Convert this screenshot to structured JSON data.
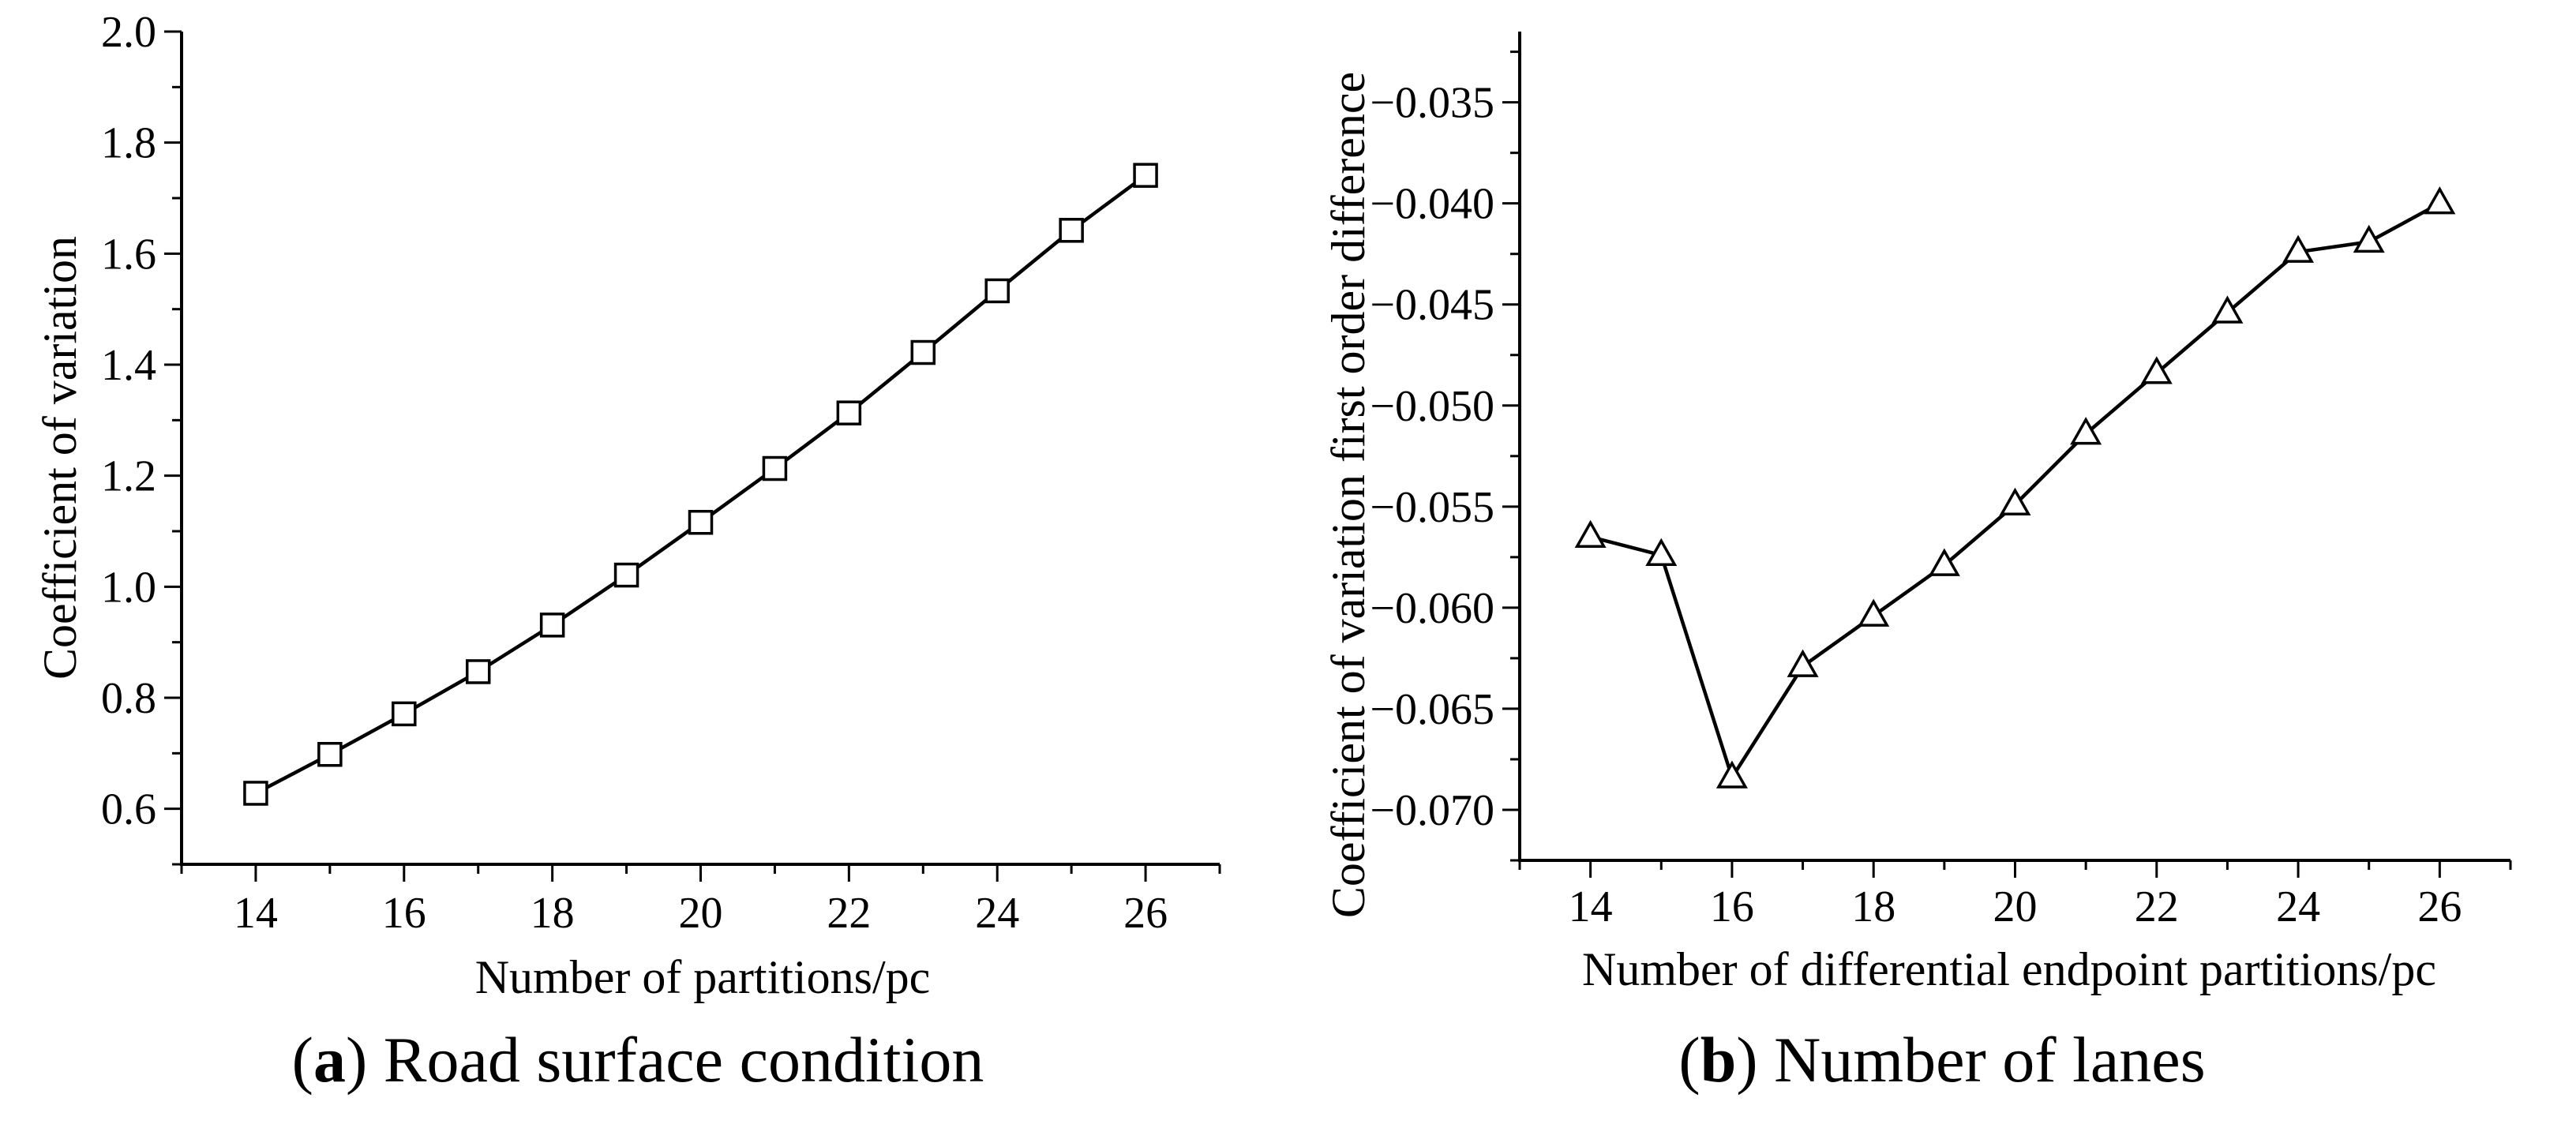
{
  "chart_data": [
    {
      "type": "line",
      "marker": "square",
      "caption_letter": "a",
      "caption_text": "Road surface condition",
      "title": "",
      "xlabel": "Number of partitions/pc",
      "ylabel": "Coefficient of variation",
      "xlim": [
        13,
        27
      ],
      "ylim": [
        0.5,
        2.0
      ],
      "xticks": [
        14,
        16,
        18,
        20,
        22,
        24,
        26
      ],
      "xtick_labels": [
        "14",
        "16",
        "18",
        "20",
        "22",
        "24",
        "26"
      ],
      "yticks": [
        0.6,
        0.8,
        1.0,
        1.2,
        1.4,
        1.6,
        1.8,
        2.0
      ],
      "ytick_labels": [
        "0.6",
        "0.8",
        "1.0",
        "1.2",
        "1.4",
        "1.6",
        "1.8",
        "2.0"
      ],
      "grid": false,
      "series": [
        {
          "name": "Coefficient of variation",
          "x": [
            14,
            15,
            16,
            17,
            18,
            19,
            20,
            21,
            22,
            23,
            24,
            25,
            26
          ],
          "values": [
            0.628,
            0.698,
            0.771,
            0.847,
            0.931,
            1.021,
            1.116,
            1.213,
            1.313,
            1.422,
            1.533,
            1.642,
            1.741
          ]
        }
      ]
    },
    {
      "type": "line",
      "marker": "triangle",
      "caption_letter": "b",
      "caption_text": "Number of lanes",
      "title": "",
      "xlabel": "Number of differential endpoint partitions/pc",
      "ylabel": "Coefficient of variation first order difference",
      "xlim": [
        13,
        27
      ],
      "ylim": [
        -0.0725,
        -0.0315
      ],
      "xticks": [
        14,
        16,
        18,
        20,
        22,
        24,
        26
      ],
      "xtick_labels": [
        "14",
        "16",
        "18",
        "20",
        "22",
        "24",
        "26"
      ],
      "yticks": [
        -0.07,
        -0.065,
        -0.06,
        -0.055,
        -0.05,
        -0.045,
        -0.04,
        -0.035
      ],
      "ytick_labels": [
        "−0.070",
        "−0.065",
        "−0.060",
        "−0.055",
        "−0.050",
        "−0.045",
        "−0.040",
        "−0.035"
      ],
      "grid": false,
      "series": [
        {
          "name": "Coefficient of variation first order difference",
          "x": [
            14,
            15,
            16,
            17,
            18,
            19,
            20,
            21,
            22,
            23,
            24,
            25,
            26
          ],
          "values": [
            -0.0565,
            -0.0574,
            -0.0684,
            -0.0629,
            -0.0604,
            -0.0579,
            -0.0549,
            -0.0514,
            -0.0484,
            -0.0454,
            -0.0424,
            -0.0419,
            -0.04
          ]
        }
      ]
    }
  ]
}
